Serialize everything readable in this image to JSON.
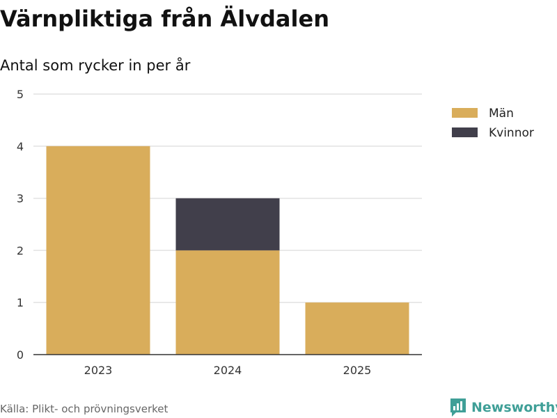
{
  "title": "Värnpliktiga från Älvdalen",
  "subtitle": "Antal som rycker in per år",
  "source": "Källa: Plikt- och prövningsverket",
  "brand": "Newsworthy",
  "colors": {
    "man": "#d9ad5b",
    "kvinnor": "#413f4b",
    "brand": "#3f9f97"
  },
  "chart_data": {
    "type": "bar",
    "stacked": true,
    "title": "Värnpliktiga från Älvdalen",
    "subtitle": "Antal som rycker in per år",
    "xlabel": "",
    "ylabel": "",
    "categories": [
      "2023",
      "2024",
      "2025"
    ],
    "series": [
      {
        "name": "Män",
        "values": [
          4,
          2,
          1
        ],
        "color": "#d9ad5b"
      },
      {
        "name": "Kvinnor",
        "values": [
          0,
          1,
          0
        ],
        "color": "#413f4b"
      }
    ],
    "ylim": [
      0,
      5
    ],
    "yticks": [
      0,
      1,
      2,
      3,
      4,
      5
    ],
    "grid": true,
    "legend": "right"
  }
}
